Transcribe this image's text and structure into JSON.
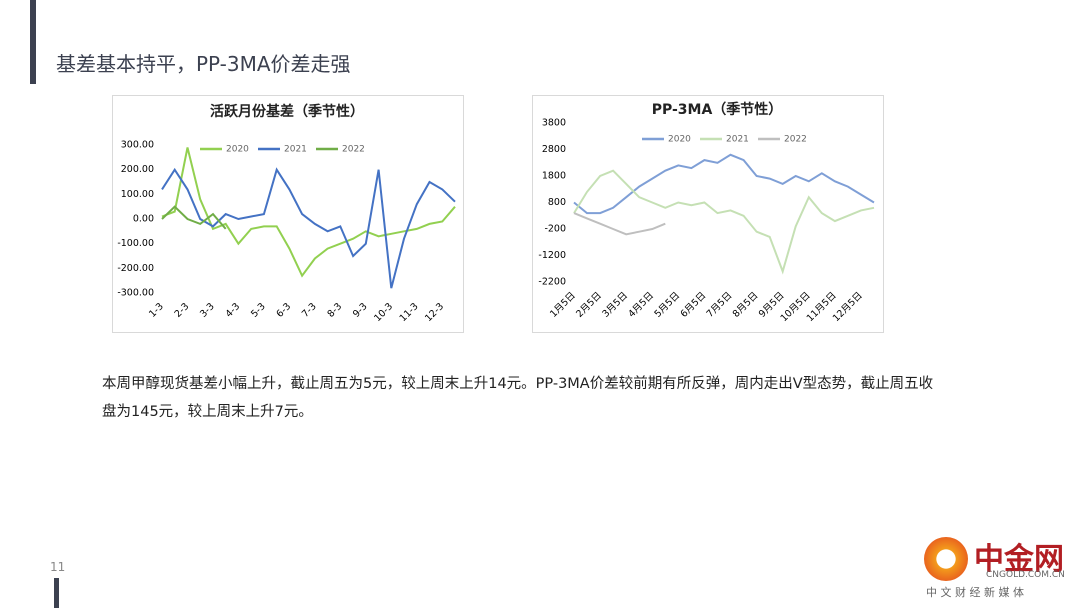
{
  "header": {
    "title": "基差基本持平，PP-3MA价差走强"
  },
  "chart_data": [
    {
      "type": "line",
      "title": "活跃月份基差（季节性）",
      "categories": [
        "1-3",
        null,
        "2-3",
        null,
        "3-3",
        null,
        "4-3",
        null,
        "5-3",
        null,
        "6-3",
        null,
        "7-3",
        null,
        "8-3",
        null,
        "9-3",
        null,
        "10-3",
        null,
        "11-3",
        null,
        "12-3",
        null
      ],
      "ylim": [
        -300,
        300
      ],
      "yticks": [
        {
          "value": 300,
          "label": "300.00"
        },
        {
          "value": 200,
          "label": "200.00"
        },
        {
          "value": 100,
          "label": "100.00"
        },
        {
          "value": 0,
          "label": "0.00"
        },
        {
          "value": -100,
          "label": "-100.00"
        },
        {
          "value": -200,
          "label": "-200.00"
        },
        {
          "value": -300,
          "label": "-300.00"
        }
      ],
      "legend": "top",
      "series": [
        {
          "name": "2020",
          "color": "#92d050",
          "values": [
            10,
            30,
            290,
            80,
            -40,
            -20,
            -100,
            -40,
            -30,
            -30,
            -120,
            -230,
            -160,
            -120,
            -100,
            -80,
            -50,
            -70,
            -60,
            -50,
            -40,
            -20,
            -10,
            50
          ]
        },
        {
          "name": "2021",
          "color": "#4472c4",
          "values": [
            120,
            200,
            120,
            0,
            -30,
            20,
            0,
            10,
            20,
            200,
            120,
            20,
            -20,
            -50,
            -30,
            -150,
            -100,
            200,
            -280,
            -80,
            60,
            150,
            120,
            70
          ]
        },
        {
          "name": "2022",
          "color": "#70ad47",
          "values": [
            0,
            50,
            0,
            -20,
            20,
            -40,
            null,
            null,
            null,
            null,
            null,
            null,
            null,
            null,
            null,
            null,
            null,
            null,
            null,
            null,
            null,
            null,
            null,
            null
          ]
        }
      ]
    },
    {
      "type": "line",
      "title": "PP-3MA（季节性）",
      "categories": [
        "1月5日",
        null,
        "2月5日",
        null,
        "3月5日",
        null,
        "4月5日",
        null,
        "5月5日",
        null,
        "6月5日",
        null,
        "7月5日",
        null,
        "8月5日",
        null,
        "9月5日",
        null,
        "10月5日",
        null,
        "11月5日",
        null,
        "12月5日",
        null
      ],
      "ylim": [
        -2200,
        3800
      ],
      "yticks": [
        3800,
        2800,
        1800,
        800,
        -200,
        -1200,
        -2200
      ],
      "legend": "top",
      "series": [
        {
          "name": "2020",
          "color": "#7f9fd6",
          "values": [
            800,
            400,
            400,
            600,
            1000,
            1400,
            1700,
            2000,
            2200,
            2100,
            2400,
            2300,
            2600,
            2400,
            1800,
            1700,
            1500,
            1800,
            1600,
            1900,
            1600,
            1400,
            1100,
            800
          ]
        },
        {
          "name": "2021",
          "color": "#c5e0b4",
          "values": [
            400,
            1200,
            1800,
            2000,
            1500,
            1000,
            800,
            600,
            800,
            700,
            800,
            400,
            500,
            300,
            -300,
            -500,
            -1800,
            -100,
            1000,
            400,
            100,
            300,
            500,
            600
          ]
        },
        {
          "name": "2022",
          "color": "#bfbfbf",
          "values": [
            400,
            200,
            0,
            -200,
            -400,
            -300,
            -200,
            0,
            null,
            null,
            null,
            null,
            null,
            null,
            null,
            null,
            null,
            null,
            null,
            null,
            null,
            null,
            null,
            null
          ]
        }
      ]
    }
  ],
  "body": "本周甲醇现货基差小幅上升，截止周五为5元，较上周末上升14元。PP-3MA价差较前期有所反弹，周内走出V型态势，截止周五收盘为145元，较上周末上升7元。",
  "page_number": "11",
  "logo": {
    "name": "中金网",
    "domain": "CNGOLD.COM.CN",
    "slogan": "中 文 财 经 新 媒 体"
  }
}
